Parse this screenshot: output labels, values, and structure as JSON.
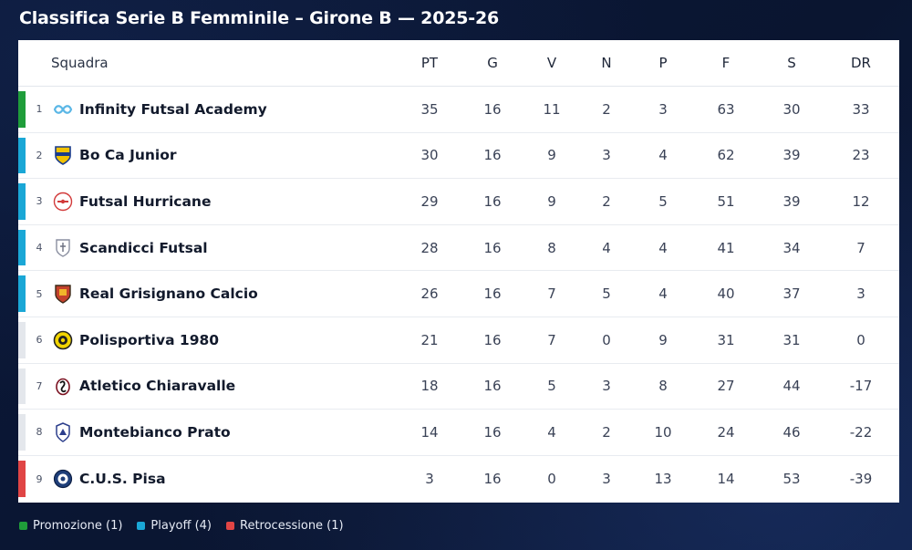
{
  "title": "Classifica Serie B Femminile – Girone B — 2025-26",
  "columns": {
    "squadra": "Squadra",
    "pt": "PT",
    "g": "G",
    "v": "V",
    "n": "N",
    "p": "P",
    "f": "F",
    "s": "S",
    "dr": "DR"
  },
  "colors": {
    "promozione": "#1f9d3a",
    "playoff": "#1aa7d6",
    "retrocessione": "#e04545",
    "none": "#e4e7ec"
  },
  "rows": [
    {
      "pos": "1",
      "team": "Infinity Futsal Academy",
      "pt": "35",
      "g": "16",
      "v": "11",
      "n": "2",
      "p": "3",
      "f": "63",
      "s": "30",
      "dr": "33",
      "zone": "promozione",
      "logo": "infinity-logo-icon"
    },
    {
      "pos": "2",
      "team": "Bo Ca Junior",
      "pt": "30",
      "g": "16",
      "v": "9",
      "n": "3",
      "p": "4",
      "f": "62",
      "s": "39",
      "dr": "23",
      "zone": "playoff",
      "logo": "bocajunior-crest-icon"
    },
    {
      "pos": "3",
      "team": "Futsal Hurricane",
      "pt": "29",
      "g": "16",
      "v": "9",
      "n": "2",
      "p": "5",
      "f": "51",
      "s": "39",
      "dr": "12",
      "zone": "playoff",
      "logo": "hurricane-logo-icon"
    },
    {
      "pos": "4",
      "team": "Scandicci Futsal",
      "pt": "28",
      "g": "16",
      "v": "8",
      "n": "4",
      "p": "4",
      "f": "41",
      "s": "34",
      "dr": "7",
      "zone": "playoff",
      "logo": "scandicci-crest-icon"
    },
    {
      "pos": "5",
      "team": "Real Grisignano Calcio",
      "pt": "26",
      "g": "16",
      "v": "7",
      "n": "5",
      "p": "4",
      "f": "40",
      "s": "37",
      "dr": "3",
      "zone": "playoff",
      "logo": "grisignano-crest-icon"
    },
    {
      "pos": "6",
      "team": "Polisportiva 1980",
      "pt": "21",
      "g": "16",
      "v": "7",
      "n": "0",
      "p": "9",
      "f": "31",
      "s": "31",
      "dr": "0",
      "zone": "none",
      "logo": "polisportiva-crest-icon"
    },
    {
      "pos": "7",
      "team": "Atletico Chiaravalle",
      "pt": "18",
      "g": "16",
      "v": "5",
      "n": "3",
      "p": "8",
      "f": "27",
      "s": "44",
      "dr": "-17",
      "zone": "none",
      "logo": "chiaravalle-crest-icon"
    },
    {
      "pos": "8",
      "team": "Montebianco Prato",
      "pt": "14",
      "g": "16",
      "v": "4",
      "n": "2",
      "p": "10",
      "f": "24",
      "s": "46",
      "dr": "-22",
      "zone": "none",
      "logo": "montebianco-crest-icon"
    },
    {
      "pos": "9",
      "team": "C.U.S. Pisa",
      "pt": "3",
      "g": "16",
      "v": "0",
      "n": "3",
      "p": "13",
      "f": "14",
      "s": "53",
      "dr": "-39",
      "zone": "retrocessione",
      "logo": "cuspisa-crest-icon"
    }
  ],
  "legend": [
    {
      "label": "Promozione (1)",
      "zone": "promozione"
    },
    {
      "label": "Playoff (4)",
      "zone": "playoff"
    },
    {
      "label": "Retrocessione (1)",
      "zone": "retrocessione"
    }
  ]
}
